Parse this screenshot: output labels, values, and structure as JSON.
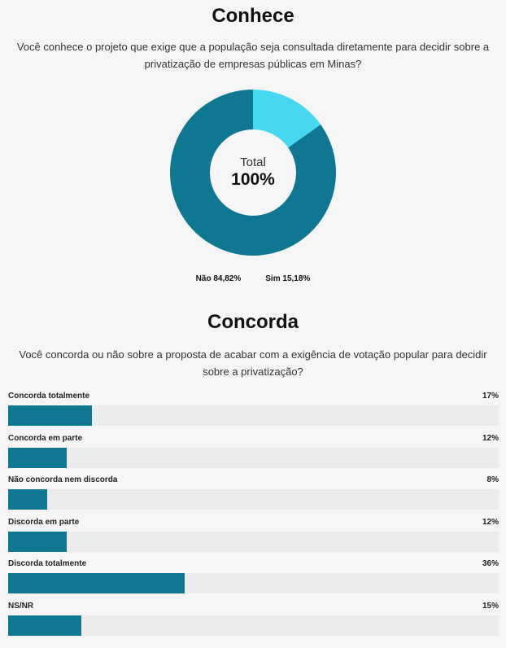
{
  "section1": {
    "title": "Conhece",
    "question": "Você conhece o projeto que exige que a população seja consultada diretamente para decidir sobre a privatização de empresas públicas em Minas?"
  },
  "section2": {
    "title": "Concorda",
    "question": "Você concorda ou não sobre a proposta de acabar com a exigência de votação popular para decidir sobre a privatização?"
  },
  "chart_data": [
    {
      "type": "pie",
      "title": "Conhece",
      "center_label": "Total",
      "center_value": "100%",
      "categories": [
        "Não",
        "Sim"
      ],
      "values": [
        84.82,
        15.18
      ],
      "value_labels": [
        "84,82%",
        "15,18%"
      ],
      "legend": [
        {
          "label": "Não 84,82%",
          "color": "#0e7893"
        },
        {
          "label": "Sim 15,18%",
          "color": "#45d8f0"
        }
      ],
      "colors": [
        "#0e7893",
        "#45d8f0"
      ],
      "legend_position": "bottom"
    },
    {
      "type": "bar",
      "orientation": "horizontal",
      "title": "Concorda",
      "xlim": [
        0,
        100
      ],
      "color": "#0e7893",
      "track_color": "#ececec",
      "categories": [
        "Concorda totalmente",
        "Concorda em parte",
        "Não concorda nem discorda",
        "Discorda em parte",
        "Discorda totalmente",
        "NS/NR"
      ],
      "values": [
        17,
        12,
        8,
        12,
        36,
        15
      ],
      "value_labels": [
        "17%",
        "12%",
        "8%",
        "12%",
        "36%",
        "15%"
      ]
    }
  ]
}
